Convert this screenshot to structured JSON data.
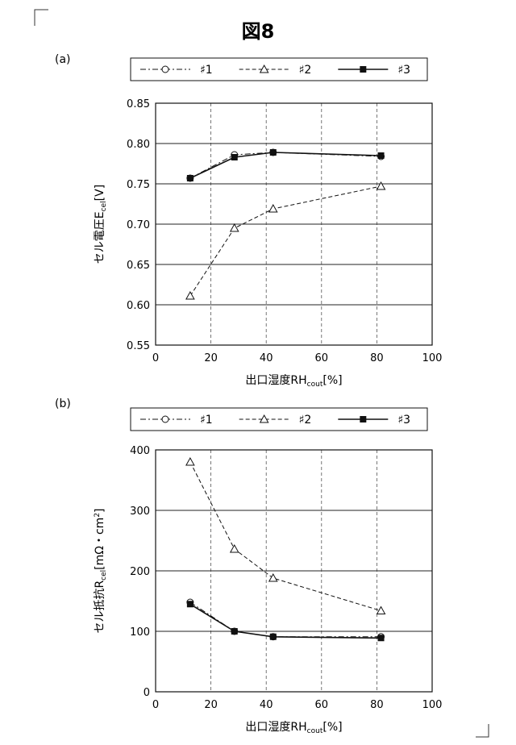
{
  "figure": {
    "title": "図8"
  },
  "chart_data": [
    {
      "type": "line",
      "panel_label": "(a)",
      "xlabel": "出口湿度RHcout[%]",
      "xlabel_main": "出口湿度RH",
      "xlabel_sub": "cout",
      "xlabel_unit": "[%]",
      "ylabel": "セル電圧Ecel[V]",
      "ylabel_main": "セル電圧E",
      "ylabel_sub": "cel",
      "ylabel_unit": "[V]",
      "xlim": [
        0,
        100
      ],
      "ylim": [
        0.55,
        0.85
      ],
      "x_ticks": [
        "0",
        "20",
        "40",
        "60",
        "80",
        "100"
      ],
      "y_ticks": [
        "0.55",
        "0.60",
        "0.65",
        "0.70",
        "0.75",
        "0.80",
        "0.85"
      ],
      "grid": {
        "x": "dashed",
        "y": "solid"
      },
      "legend_position": "top",
      "series": [
        {
          "name": "#1",
          "label": "♯1",
          "marker": "open-circle",
          "line": "dash-dot",
          "x": [
            12.5,
            28.5,
            42.5,
            81.5
          ],
          "y": [
            0.757,
            0.786,
            0.789,
            0.784
          ]
        },
        {
          "name": "#2",
          "label": "♯2",
          "marker": "open-triangle",
          "line": "dashed",
          "x": [
            12.5,
            28.5,
            42.5,
            81.5
          ],
          "y": [
            0.611,
            0.695,
            0.719,
            0.747
          ]
        },
        {
          "name": "#3",
          "label": "♯3",
          "marker": "filled-square",
          "line": "solid",
          "x": [
            12.5,
            28.5,
            42.5,
            81.5
          ],
          "y": [
            0.757,
            0.783,
            0.789,
            0.785
          ]
        }
      ]
    },
    {
      "type": "line",
      "panel_label": "(b)",
      "xlabel": "出口湿度RHcout[%]",
      "xlabel_main": "出口湿度RH",
      "xlabel_sub": "cout",
      "xlabel_unit": "[%]",
      "ylabel": "セル抵抗Rcel[mΩ・cm2]",
      "ylabel_main": "セル抵抗R",
      "ylabel_sub": "cel",
      "ylabel_unit": "[mΩ・cm",
      "ylabel_sup": "2",
      "ylabel_end": "]",
      "xlim": [
        0,
        100
      ],
      "ylim": [
        0,
        400
      ],
      "x_ticks": [
        "0",
        "20",
        "40",
        "60",
        "80",
        "100"
      ],
      "y_ticks": [
        "0",
        "100",
        "200",
        "300",
        "400"
      ],
      "grid": {
        "x": "dashed",
        "y": "solid"
      },
      "legend_position": "top",
      "series": [
        {
          "name": "#1",
          "label": "♯1",
          "marker": "open-circle",
          "line": "dash-dot",
          "x": [
            12.5,
            28.5,
            42.5,
            81.5
          ],
          "y": [
            148,
            100,
            91,
            91
          ]
        },
        {
          "name": "#2",
          "label": "♯2",
          "marker": "open-triangle",
          "line": "dashed",
          "x": [
            12.5,
            28.5,
            42.5,
            81.5
          ],
          "y": [
            380,
            236,
            188,
            134
          ]
        },
        {
          "name": "#3",
          "label": "♯3",
          "marker": "filled-square",
          "line": "solid",
          "x": [
            12.5,
            28.5,
            42.5,
            81.5
          ],
          "y": [
            145,
            100,
            91,
            89
          ]
        }
      ]
    }
  ]
}
